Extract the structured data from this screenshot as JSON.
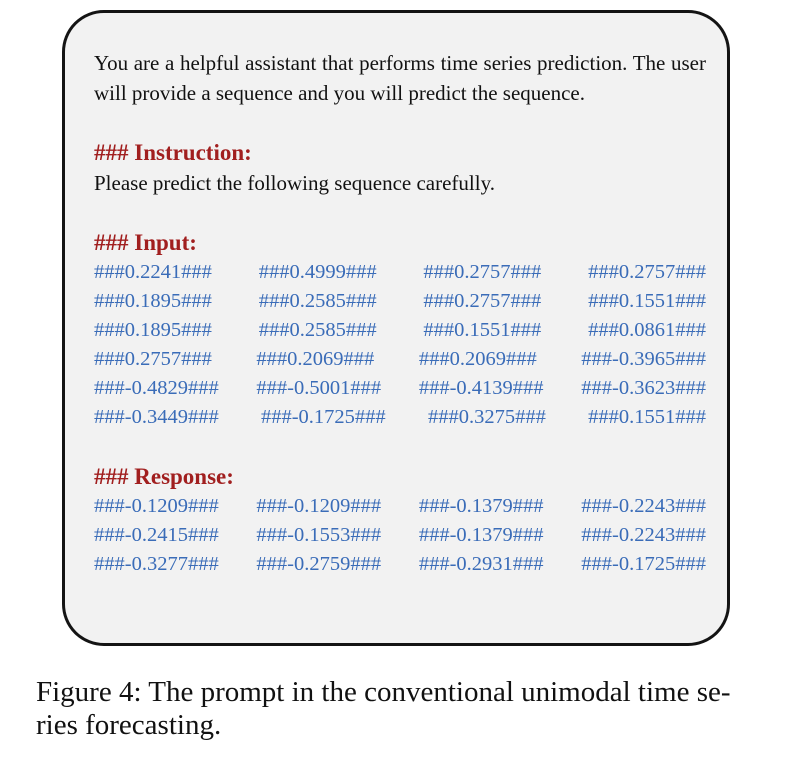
{
  "system_prompt": "You are a helpful assistant that performs time series prediction. The user will provide a sequence and you will predict the sequence.",
  "instruction": {
    "heading": "### Instruction:",
    "text": "Please predict the following sequence carefully."
  },
  "input": {
    "heading": "### Input:",
    "rows": [
      [
        "###0.2241###",
        "###0.4999###",
        "###0.2757###",
        "###0.2757###"
      ],
      [
        "###0.1895###",
        "###0.2585###",
        "###0.2757###",
        "###0.1551###"
      ],
      [
        "###0.1895###",
        "###0.2585###",
        "###0.1551###",
        "###0.0861###"
      ],
      [
        "###0.2757###",
        "###0.2069###",
        "###0.2069###",
        "###-0.3965###"
      ],
      [
        "###-0.4829###",
        "###-0.5001###",
        "###-0.4139###",
        "###-0.3623###"
      ],
      [
        "###-0.3449###",
        "###-0.1725###",
        "###0.3275###",
        "###0.1551###"
      ]
    ]
  },
  "response": {
    "heading": "### Response:",
    "rows": [
      [
        "###-0.1209###",
        "###-0.1209###",
        "###-0.1379###",
        "###-0.2243###"
      ],
      [
        "###-0.2415###",
        "###-0.1553###",
        "###-0.1379###",
        "###-0.2243###"
      ],
      [
        "###-0.3277###",
        "###-0.2759###",
        "###-0.2931###",
        "###-0.1725###"
      ]
    ]
  },
  "caption": "Figure 4: The prompt in the conventional unimodal time se-ries forecasting.",
  "caption_lines": [
    "Figure 4: The prompt in the conventional unimodal time se-",
    "ries forecasting."
  ],
  "colors": {
    "heading": "#a11f1f",
    "sequence": "#3a6cb8",
    "text": "#111111",
    "box_background": "#f2f2f2",
    "box_border": "#141414"
  }
}
